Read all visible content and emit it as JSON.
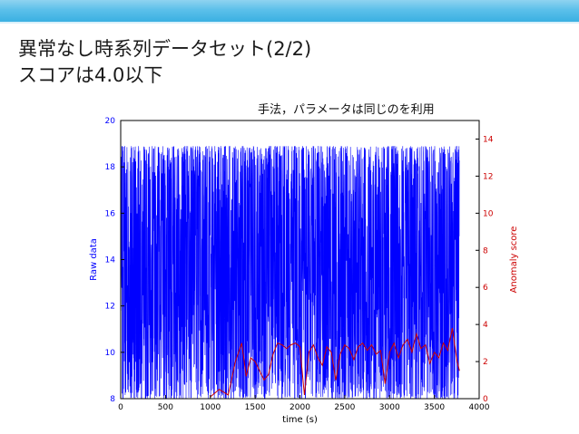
{
  "slide": {
    "title_line1": "異常なし時系列データセット(2/2)",
    "title_line2": "スコアは4.0以下",
    "note": "手法，パラメータは同じのを利用"
  },
  "colors": {
    "header_bar": "#3ab0e2",
    "raw_series": "#0000ff",
    "score_series": "#cc0000"
  },
  "chart_data": {
    "type": "line",
    "xlabel": "time (s)",
    "ylabel": "Raw data",
    "y2label": "Anomaly score",
    "xlim": [
      0,
      4000
    ],
    "ylim": [
      8,
      20
    ],
    "y2lim": [
      0,
      15
    ],
    "xticks": [
      "0",
      "500",
      "1000",
      "1500",
      "2000",
      "2500",
      "3000",
      "3500",
      "4000"
    ],
    "yticks": [
      "8",
      "10",
      "12",
      "14",
      "16",
      "18",
      "20"
    ],
    "y2ticks": [
      "0",
      "2",
      "4",
      "6",
      "8",
      "10",
      "12",
      "14"
    ],
    "series": [
      {
        "axis": "left",
        "x_range": [
          0,
          3780
        ],
        "min": 8.0,
        "max": 18.9
      },
      {
        "axis": "right",
        "x": [
          1000,
          1100,
          1200,
          1280,
          1350,
          1400,
          1450,
          1500,
          1550,
          1600,
          1650,
          1700,
          1750,
          1800,
          1850,
          1900,
          1950,
          2000,
          2050,
          2100,
          2150,
          2200,
          2250,
          2300,
          2350,
          2400,
          2450,
          2500,
          2550,
          2600,
          2650,
          2700,
          2750,
          2800,
          2850,
          2900,
          2950,
          3000,
          3050,
          3100,
          3150,
          3200,
          3250,
          3300,
          3350,
          3400,
          3450,
          3500,
          3550,
          3600,
          3650,
          3700,
          3750,
          3780
        ],
        "values": [
          0.1,
          0.5,
          0.2,
          2.0,
          3.0,
          1.2,
          2.2,
          2.0,
          1.5,
          1.0,
          1.3,
          2.4,
          3.0,
          2.9,
          2.7,
          2.9,
          3.0,
          2.8,
          0.2,
          2.5,
          2.9,
          2.2,
          1.8,
          2.8,
          2.5,
          1.0,
          2.4,
          2.9,
          2.7,
          2.1,
          2.8,
          3.0,
          2.6,
          2.9,
          2.4,
          2.6,
          0.8,
          2.5,
          3.0,
          2.2,
          2.9,
          3.2,
          2.5,
          3.5,
          2.7,
          2.9,
          1.9,
          2.5,
          2.2,
          3.0,
          2.6,
          3.8,
          2.1,
          1.5
        ]
      }
    ]
  }
}
